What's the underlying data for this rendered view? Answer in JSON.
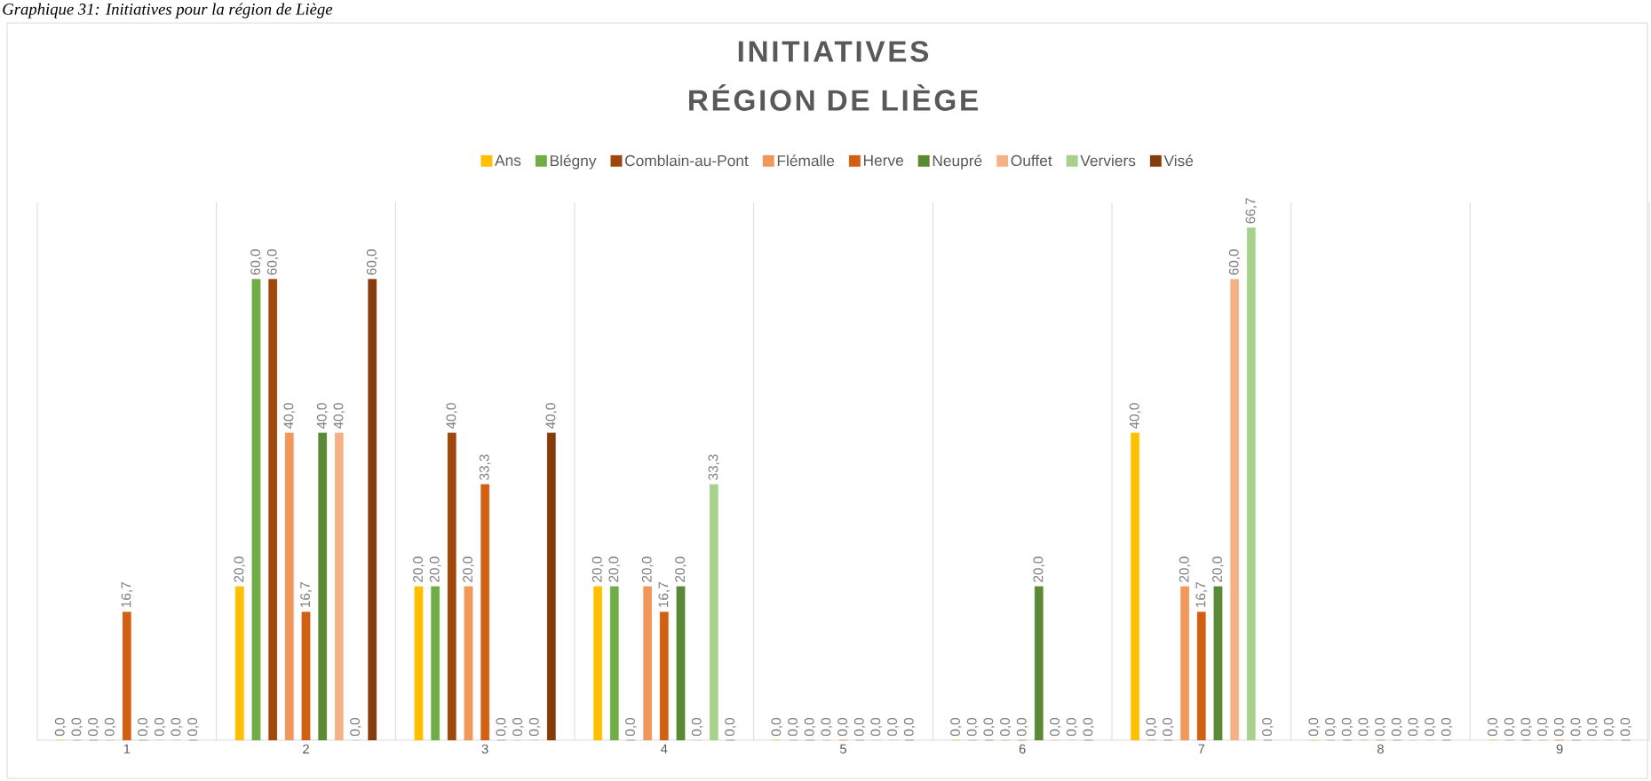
{
  "chart_data": {
    "type": "bar",
    "title": "INITIATIVES",
    "subtitle": "RÉGION DE LIÈGE",
    "annotations": [
      "*Graphique 31: Initiatives pour la région de Liège*"
    ],
    "categories": [
      "1",
      "2",
      "3",
      "4",
      "5",
      "6",
      "7",
      "8",
      "9"
    ],
    "ylim": [
      0,
      70
    ],
    "grid": "x",
    "legend": "top",
    "tick_labels": "x",
    "series": [
      {
        "name": "Ans",
        "color": "#ffc000",
        "values": [
          0,
          20,
          20,
          20,
          0,
          0,
          40,
          0,
          0
        ],
        "value_labels": [
          "0,0",
          "20,0",
          "20,0",
          "20,0",
          "0,0",
          "0,0",
          "40,0",
          "0,0",
          "0,0"
        ]
      },
      {
        "name": "Blégny",
        "color": "#70ad47",
        "values": [
          0,
          60,
          20,
          20,
          0,
          0,
          0,
          0,
          0
        ],
        "value_labels": [
          "0,0",
          "60,0",
          "20,0",
          "20,0",
          "0,0",
          "0,0",
          "0,0",
          "0,0",
          "0,0"
        ]
      },
      {
        "name": "Comblain-au-Pont",
        "color": "#9e480e",
        "values": [
          0,
          60,
          40,
          0,
          0,
          0,
          0,
          0,
          0
        ],
        "value_labels": [
          "0,0",
          "60,0",
          "40,0",
          "0,0",
          "0,0",
          "0,0",
          "0,0",
          "0,0",
          "0,0"
        ]
      },
      {
        "name": "Flémalle",
        "color": "#f1975a",
        "values": [
          0,
          40,
          20,
          20,
          0,
          0,
          20,
          0,
          0
        ],
        "value_labels": [
          "0,0",
          "40,0",
          "20,0",
          "20,0",
          "0,0",
          "0,0",
          "20,0",
          "0,0",
          "0,0"
        ]
      },
      {
        "name": "Herve",
        "color": "#d26012",
        "values": [
          16.7,
          16.7,
          33.3,
          16.7,
          0,
          0,
          16.7,
          0,
          0
        ],
        "value_labels": [
          "16,7",
          "16,7",
          "33,3",
          "16,7",
          "0,0",
          "0,0",
          "16,7",
          "0,0",
          "0,0"
        ]
      },
      {
        "name": "Neupré",
        "color": "#5b8a37",
        "values": [
          0,
          40,
          0,
          20,
          0,
          20,
          20,
          0,
          0
        ],
        "value_labels": [
          "0,0",
          "40,0",
          "0,0",
          "20,0",
          "0,0",
          "20,0",
          "20,0",
          "0,0",
          "0,0"
        ]
      },
      {
        "name": "Ouffet",
        "color": "#f4b183",
        "values": [
          0,
          40,
          0,
          0,
          0,
          0,
          60,
          0,
          0
        ],
        "value_labels": [
          "0,0",
          "40,0",
          "0,0",
          "0,0",
          "0,0",
          "0,0",
          "60,0",
          "0,0",
          "0,0"
        ]
      },
      {
        "name": "Verviers",
        "color": "#a9d18e",
        "values": [
          0,
          0,
          0,
          33.3,
          0,
          0,
          66.7,
          0,
          0
        ],
        "value_labels": [
          "0,0",
          "0,0",
          "0,0",
          "33,3",
          "0,0",
          "0,0",
          "66,7",
          "0,0",
          "0,0"
        ]
      },
      {
        "name": "Visé",
        "color": "#843c0c",
        "values": [
          0,
          60,
          40,
          0,
          0,
          0,
          0,
          0,
          0
        ],
        "value_labels": [
          "0,0",
          "60,0",
          "40,0",
          "0,0",
          "0,0",
          "0,0",
          "0,0",
          "0,0",
          "0,0"
        ]
      }
    ]
  }
}
